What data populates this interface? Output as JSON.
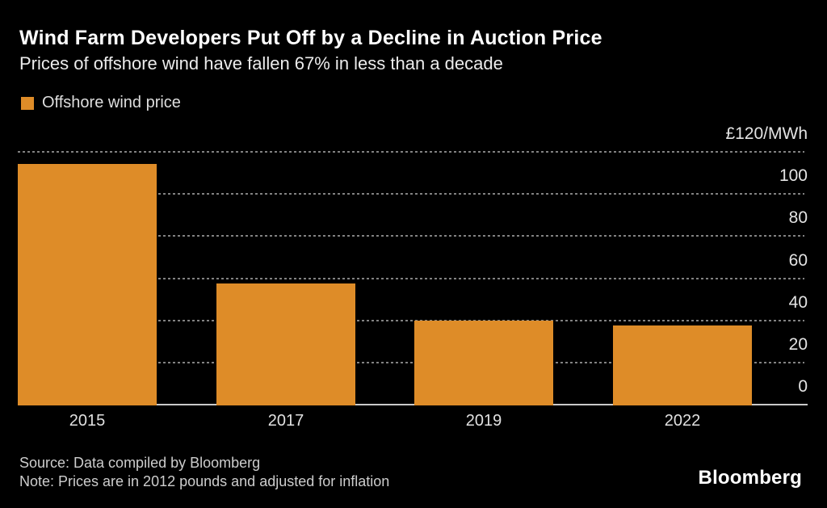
{
  "header": {
    "title": "Wind Farm Developers Put Off by a Decline in Auction Price",
    "subtitle": "Prices of offshore wind have fallen 67% in less than a decade"
  },
  "legend": {
    "label": "Offshore wind price",
    "swatch_color": "#DE8C28"
  },
  "chart_data": {
    "type": "bar",
    "title": "Wind Farm Developers Put Off by a Decline in Auction Price",
    "subtitle": "Prices of offshore wind have fallen 67% in less than a decade",
    "series_name": "Offshore wind price",
    "categories": [
      "2015",
      "2017",
      "2019",
      "2022"
    ],
    "values": [
      114.4,
      57.5,
      39.7,
      37.4
    ],
    "unit_label": "£120/MWh",
    "ylabel": "£/MWh",
    "xlabel": "",
    "ylim": [
      0,
      120
    ],
    "yticks": [
      120,
      100,
      80,
      60,
      40,
      20,
      0
    ],
    "ytick_labels": [
      "£120/MWh",
      "100",
      "80",
      "60",
      "40",
      "20",
      "0"
    ],
    "grid": "horizontal dotted",
    "legend_position": "top-left",
    "bar_color": "#DE8C28",
    "background_color": "#000000",
    "gridline_color": "#828282",
    "baseline_color": "#c9c9c9",
    "text_color": "#e3e3e3"
  },
  "footer": {
    "source": "Source: Data compiled by Bloomberg",
    "note": "Note: Prices are in 2012 pounds and adjusted for inflation",
    "brand": "Bloomberg"
  }
}
